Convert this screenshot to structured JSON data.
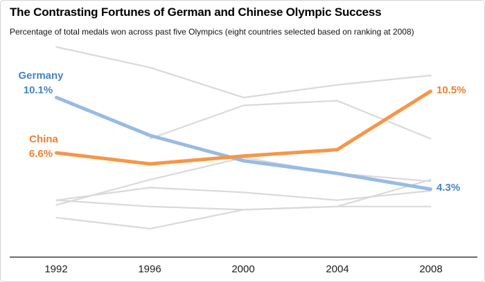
{
  "colors": {
    "germany_line": "#97bbe4",
    "germany_label": "#4583c7",
    "china_line": "#f79646",
    "china_label": "#ee7f2f",
    "context_line": "#d9d9d9",
    "axis_line": "#3c3c3c"
  },
  "chart_data": {
    "type": "line",
    "title": "The Contrasting Fortunes of German and Chinese Olympic Success",
    "subtitle": "Percentage of total medals won across past five Olympics (eight countries selected based on ranking at 2008)",
    "x": [
      1992,
      1996,
      2000,
      2004,
      2008
    ],
    "x_tick_labels": [
      "1992",
      "1996",
      "2000",
      "2004",
      "2008"
    ],
    "ylabel": "Percentage of total medals won",
    "ylim": [
      0,
      14
    ],
    "grid": false,
    "legend": "none (direct line labels)",
    "series": [
      {
        "name": "other-1",
        "emphasis": false,
        "color": "#d9d9d9",
        "values": [
          13.3,
          12.0,
          10.1,
          10.9,
          11.5
        ]
      },
      {
        "name": "other-2",
        "emphasis": false,
        "color": "#d9d9d9",
        "values": [
          null,
          7.5,
          9.6,
          9.9,
          7.5
        ]
      },
      {
        "name": "other-3",
        "emphasis": false,
        "color": "#d9d9d9",
        "values": [
          3.3,
          4.9,
          6.3,
          5.3,
          4.8
        ]
      },
      {
        "name": "other-4",
        "emphasis": false,
        "color": "#d9d9d9",
        "values": [
          3.6,
          4.4,
          4.1,
          3.6,
          4.2
        ]
      },
      {
        "name": "other-5",
        "emphasis": false,
        "color": "#d9d9d9",
        "values": [
          3.6,
          3.2,
          3.0,
          3.2,
          3.2
        ]
      },
      {
        "name": "other-6",
        "emphasis": false,
        "color": "#d9d9d9",
        "values": [
          2.5,
          1.8,
          3.0,
          3.2,
          4.9
        ]
      },
      {
        "name": "Germany",
        "emphasis": true,
        "color": "#97bbe4",
        "values": [
          10.1,
          7.7,
          6.1,
          5.3,
          4.3
        ]
      },
      {
        "name": "China",
        "emphasis": true,
        "color": "#f79646",
        "values": [
          6.6,
          5.9,
          6.4,
          6.8,
          10.5
        ]
      }
    ],
    "annotations": {
      "germany_name": "Germany",
      "germany_start_value": "10.1%",
      "china_name": "China",
      "china_start_value": "6.6%",
      "china_end_value": "10.5%",
      "germany_end_value": "4.3%"
    }
  }
}
